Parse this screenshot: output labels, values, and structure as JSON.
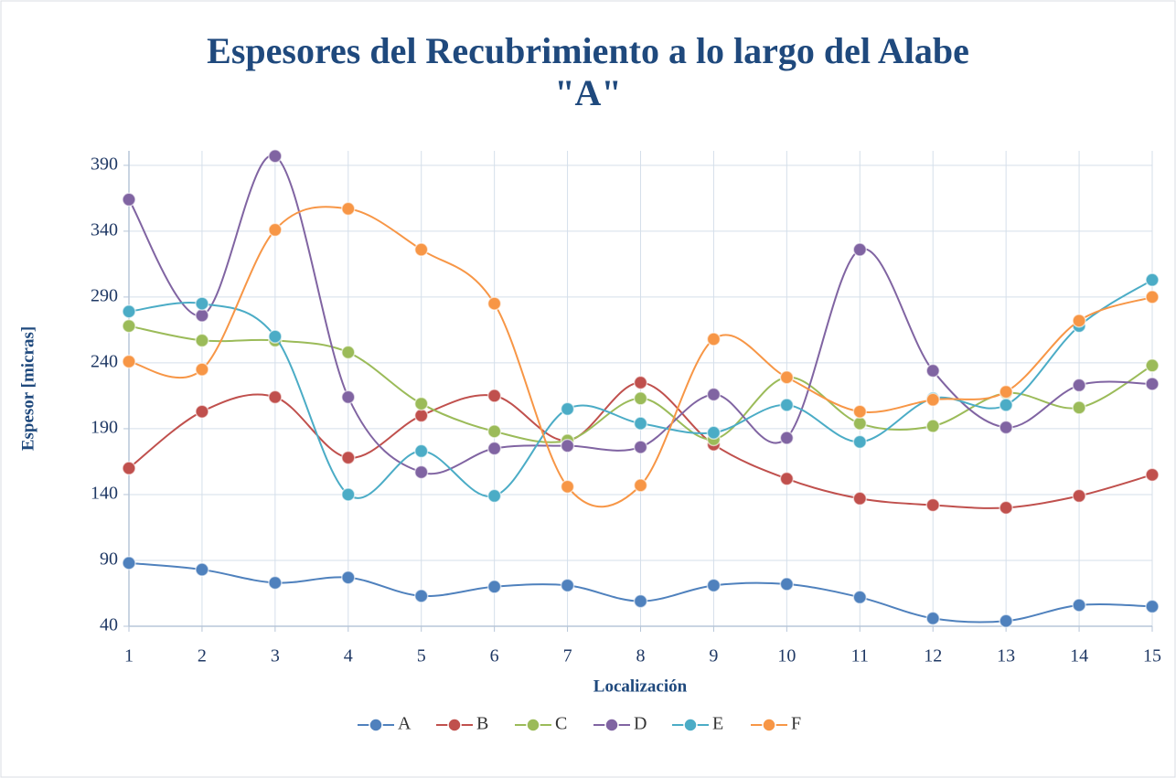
{
  "chart_data": {
    "type": "line",
    "title": [
      "Espesores del Recubrimiento a lo largo del Alabe",
      "\"A\""
    ],
    "x_label": "Localización",
    "y_label": "Espesor [micras]",
    "x": [
      1,
      2,
      3,
      4,
      5,
      6,
      7,
      8,
      9,
      10,
      11,
      12,
      13,
      14,
      15
    ],
    "xlim": [
      1,
      15
    ],
    "xticks": [
      1,
      2,
      3,
      4,
      5,
      6,
      7,
      8,
      9,
      10,
      11,
      12,
      13,
      14,
      15
    ],
    "ylim": [
      40,
      401
    ],
    "yticks": [
      40,
      90,
      140,
      190,
      240,
      290,
      340,
      390
    ],
    "grid": true,
    "smooth": true,
    "legend": "bottom",
    "series": [
      {
        "name": "A",
        "color": "#4f81bd",
        "values": [
          88,
          83,
          73,
          77,
          63,
          70,
          71,
          59,
          71,
          72,
          62,
          46,
          44,
          56,
          55
        ]
      },
      {
        "name": "B",
        "color": "#c0504d",
        "values": [
          160,
          203,
          214,
          168,
          200,
          215,
          181,
          225,
          178,
          152,
          137,
          132,
          130,
          139,
          155
        ]
      },
      {
        "name": "C",
        "color": "#9bbb59",
        "values": [
          268,
          257,
          257,
          248,
          209,
          188,
          181,
          213,
          182,
          229,
          194,
          192,
          217,
          206,
          238
        ]
      },
      {
        "name": "D",
        "color": "#8064a2",
        "values": [
          364,
          276,
          397,
          214,
          157,
          175,
          177,
          176,
          216,
          183,
          326,
          234,
          191,
          223,
          224
        ]
      },
      {
        "name": "E",
        "color": "#4bacc6",
        "values": [
          279,
          285,
          260,
          140,
          173,
          139,
          205,
          194,
          187,
          208,
          180,
          213,
          208,
          268,
          303
        ]
      },
      {
        "name": "F",
        "color": "#f79646",
        "values": [
          241,
          235,
          341,
          357,
          326,
          285,
          146,
          147,
          258,
          229,
          203,
          212,
          218,
          272,
          290
        ]
      }
    ]
  }
}
